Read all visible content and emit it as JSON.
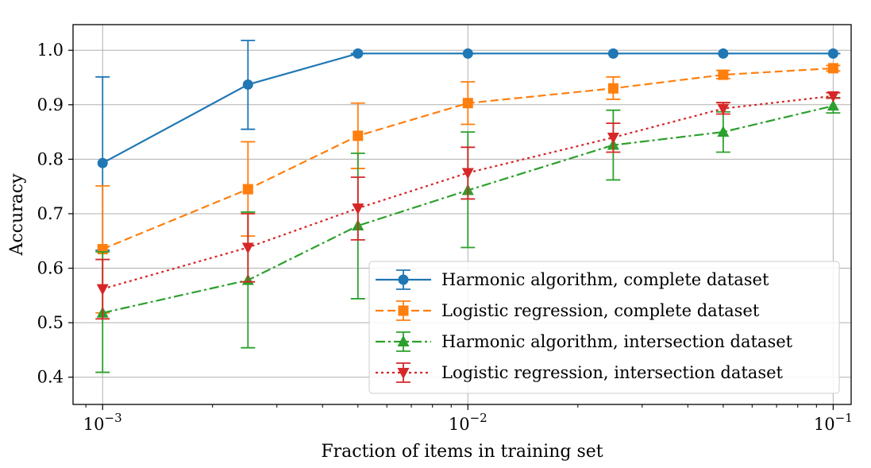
{
  "chart_data": {
    "type": "line",
    "title": "",
    "xlabel": "Fraction of items in training set",
    "ylabel": "Accuracy",
    "xscale": "log",
    "xlim": [
      0.00083,
      0.112
    ],
    "ylim": [
      0.35,
      1.047
    ],
    "grid": true,
    "legend_position": "lower-right",
    "x_ticks": [
      {
        "value": 0.001,
        "base": "10",
        "exp": "−3"
      },
      {
        "value": 0.01,
        "base": "10",
        "exp": "−2"
      },
      {
        "value": 0.1,
        "base": "10",
        "exp": "−1"
      }
    ],
    "y_ticks": [
      {
        "value": 0.4,
        "label": "0.4"
      },
      {
        "value": 0.5,
        "label": "0.5"
      },
      {
        "value": 0.6,
        "label": "0.6"
      },
      {
        "value": 0.7,
        "label": "0.7"
      },
      {
        "value": 0.8,
        "label": "0.8"
      },
      {
        "value": 0.9,
        "label": "0.9"
      },
      {
        "value": 1.0,
        "label": "1.0"
      }
    ],
    "x": [
      0.001,
      0.0025,
      0.005,
      0.01,
      0.025,
      0.05,
      0.1
    ],
    "series": [
      {
        "name": "Harmonic algorithm, complete dataset",
        "color": "#1f77b4",
        "linestyle": "solid",
        "marker": "circle",
        "values": [
          0.793,
          0.937,
          0.994,
          0.994,
          0.994,
          0.994,
          0.994
        ],
        "err_low": [
          0.633,
          0.855,
          0.994,
          0.994,
          0.994,
          0.994,
          0.994
        ],
        "err_high": [
          0.951,
          1.018,
          0.994,
          0.994,
          0.994,
          0.994,
          0.994
        ]
      },
      {
        "name": "Logistic regression, complete dataset",
        "color": "#ff7f0e",
        "linestyle": "dashed",
        "marker": "square",
        "values": [
          0.635,
          0.745,
          0.843,
          0.903,
          0.93,
          0.955,
          0.967
        ],
        "err_low": [
          0.518,
          0.659,
          0.783,
          0.864,
          0.91,
          0.948,
          0.962
        ],
        "err_high": [
          0.751,
          0.832,
          0.903,
          0.942,
          0.951,
          0.963,
          0.972
        ]
      },
      {
        "name": "Harmonic algorithm, intersection dataset",
        "color": "#2ca02c",
        "linestyle": "dashdot",
        "marker": "triangle-up",
        "values": [
          0.518,
          0.578,
          0.678,
          0.743,
          0.826,
          0.85,
          0.898
        ],
        "err_low": [
          0.409,
          0.454,
          0.544,
          0.638,
          0.762,
          0.813,
          0.885
        ],
        "err_high": [
          0.63,
          0.703,
          0.811,
          0.85,
          0.89,
          0.887,
          0.913
        ]
      },
      {
        "name": "Logistic regression, intersection dataset",
        "color": "#d62728",
        "linestyle": "dotted",
        "marker": "triangle-down",
        "values": [
          0.562,
          0.638,
          0.71,
          0.775,
          0.84,
          0.893,
          0.916
        ],
        "err_low": [
          0.507,
          0.575,
          0.652,
          0.727,
          0.813,
          0.883,
          0.912
        ],
        "err_high": [
          0.616,
          0.7,
          0.767,
          0.822,
          0.866,
          0.904,
          0.922
        ]
      }
    ]
  }
}
